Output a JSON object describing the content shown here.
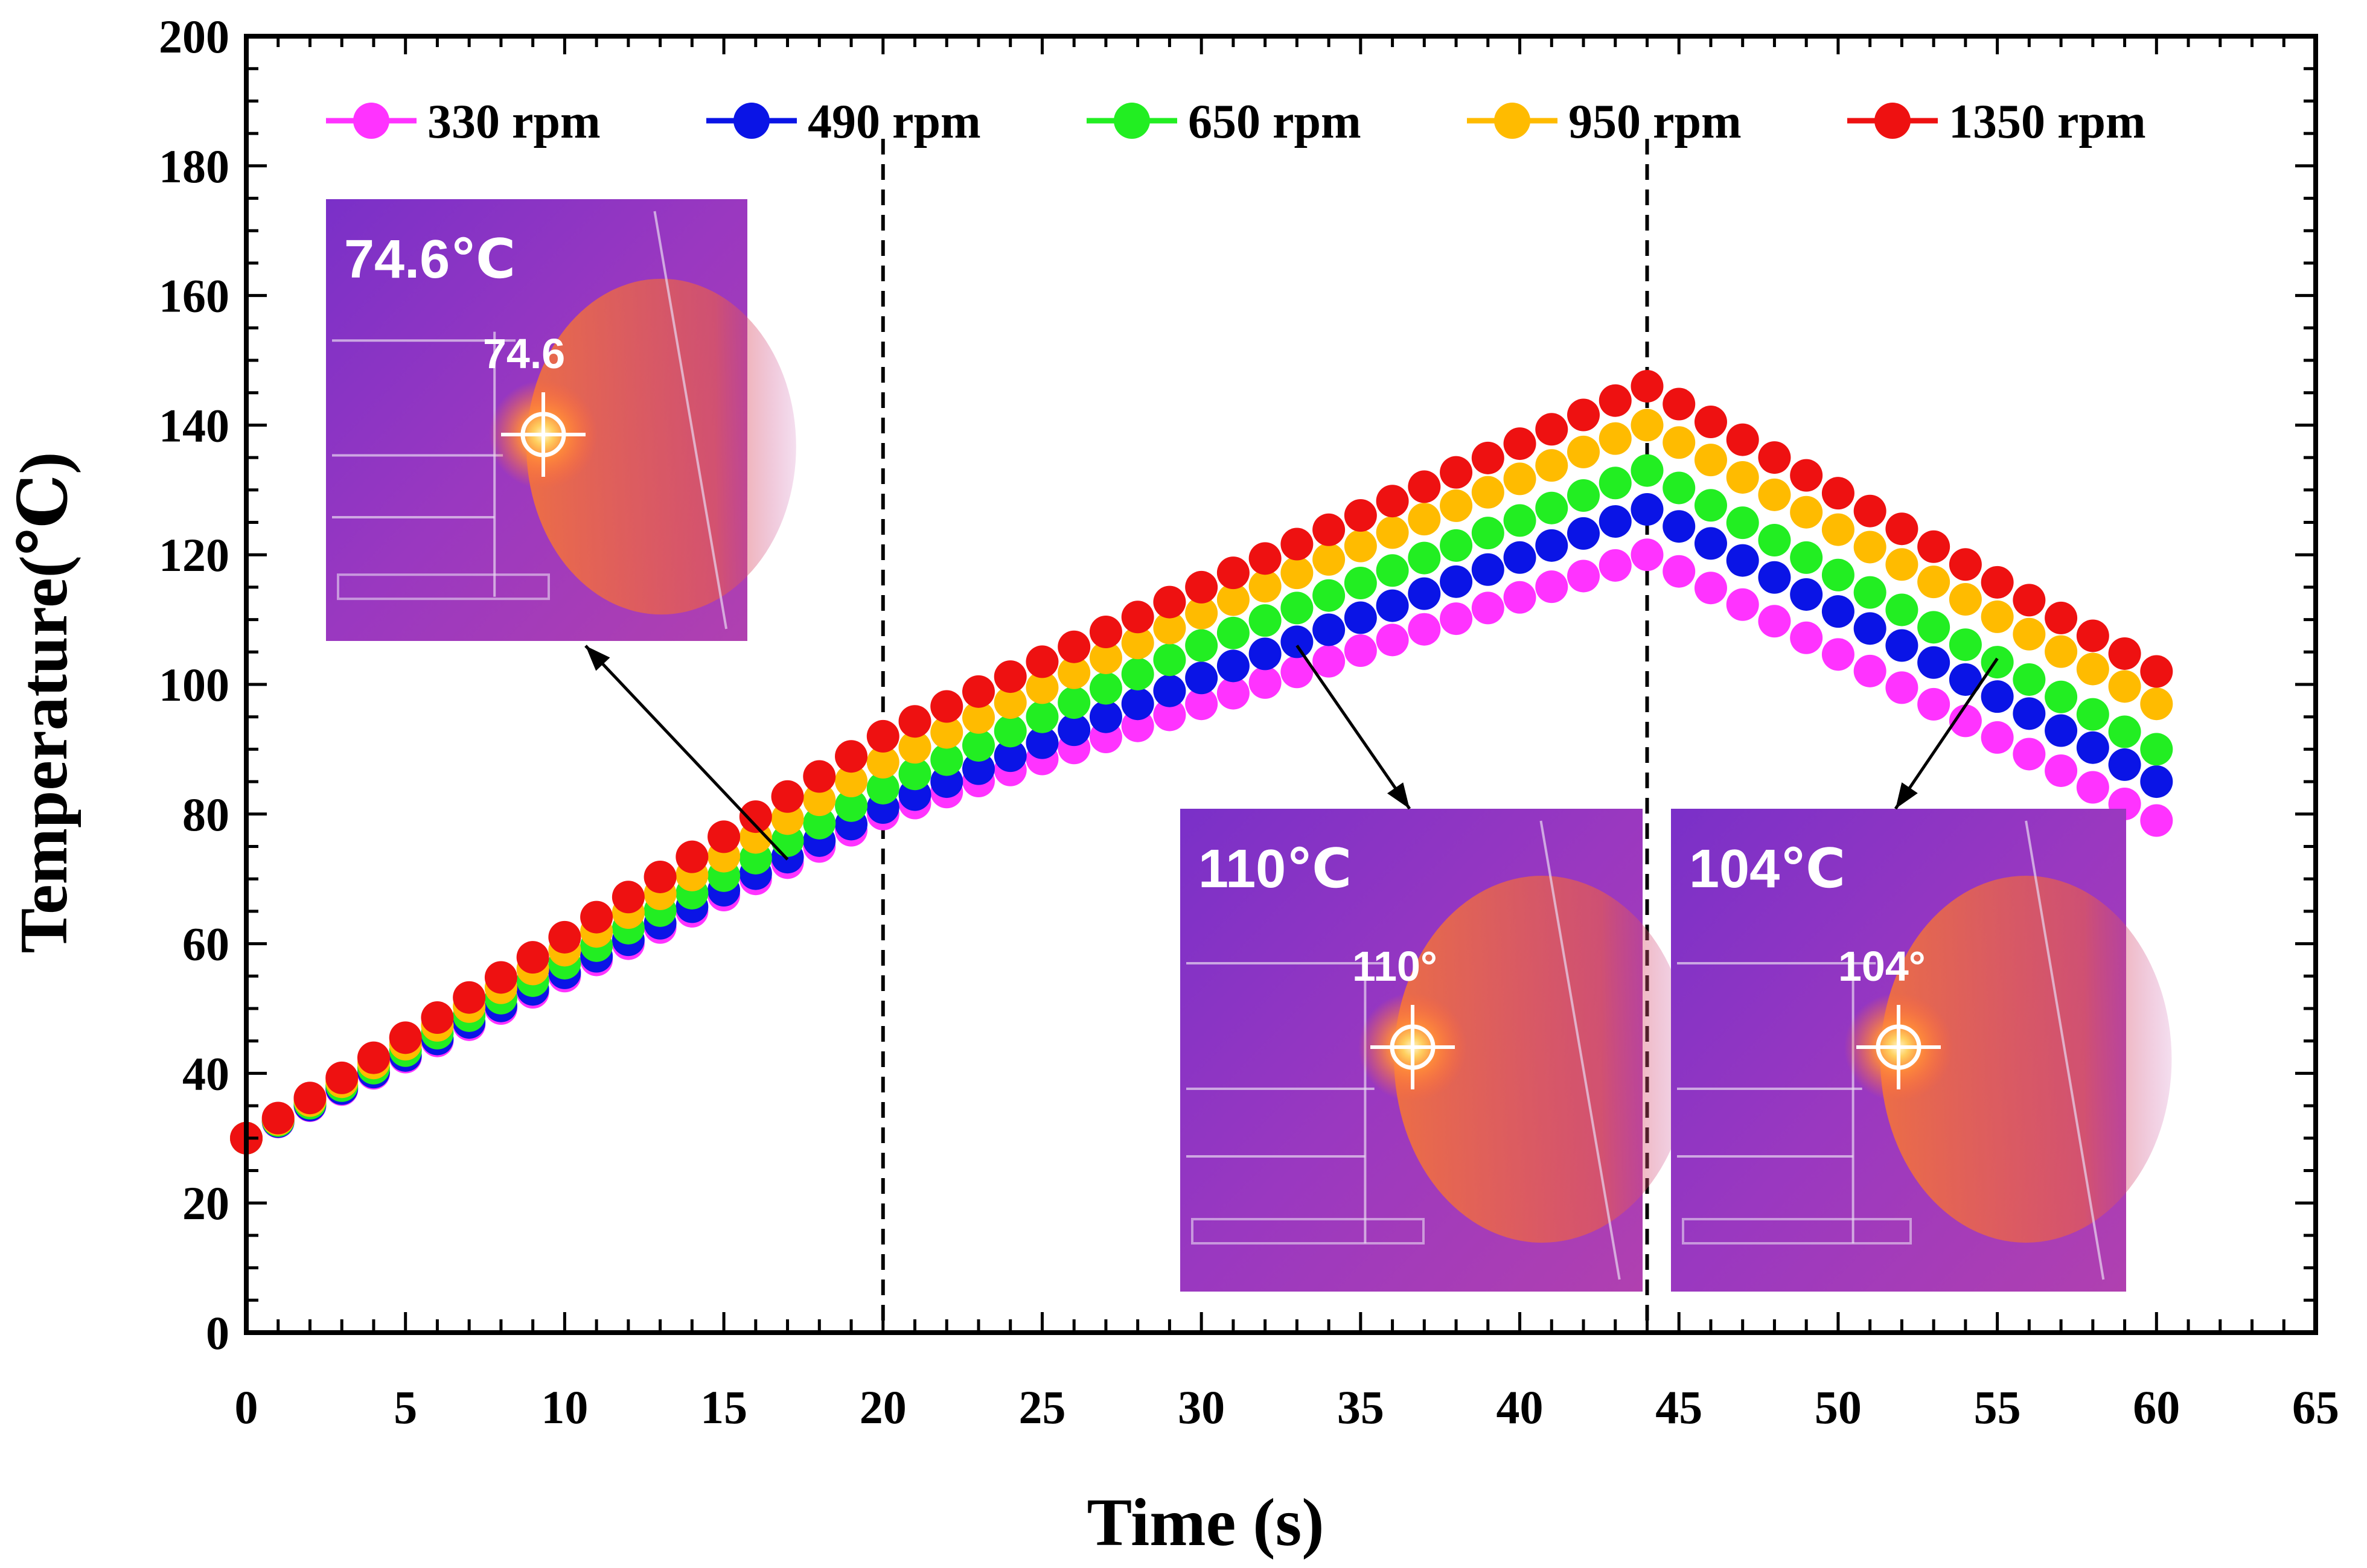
{
  "chart_data": {
    "type": "scatter",
    "title": "",
    "xlabel": "Time (s)",
    "ylabel": "Temperature(℃)",
    "xlim": [
      0,
      65
    ],
    "ylim": [
      0,
      200
    ],
    "xticks": [
      0,
      5,
      10,
      15,
      20,
      25,
      30,
      35,
      40,
      45,
      50,
      55,
      60,
      65
    ],
    "yticks": [
      0,
      20,
      40,
      60,
      80,
      100,
      120,
      140,
      160,
      180,
      200
    ],
    "xtick_labels": [
      "0",
      "5",
      "10",
      "15",
      "20",
      "25",
      "30",
      "35",
      "40",
      "45",
      "50",
      "55",
      "60",
      "65"
    ],
    "ytick_labels": [
      "0",
      "20",
      "40",
      "60",
      "80",
      "100",
      "120",
      "140",
      "160",
      "180",
      "200"
    ],
    "vlines": [
      20,
      44
    ],
    "legend_position": "top",
    "series": [
      {
        "name": "330 rpm",
        "color": "#ff33ff",
        "anchors": [
          [
            0,
            30
          ],
          [
            20,
            80
          ],
          [
            30,
            97
          ],
          [
            44,
            120
          ],
          [
            60,
            79
          ]
        ]
      },
      {
        "name": "490 rpm",
        "color": "#0a14e6",
        "anchors": [
          [
            0,
            30
          ],
          [
            20,
            81
          ],
          [
            30,
            101
          ],
          [
            44,
            127
          ],
          [
            60,
            85
          ]
        ]
      },
      {
        "name": "650 rpm",
        "color": "#22ee22",
        "anchors": [
          [
            0,
            30
          ],
          [
            20,
            84
          ],
          [
            30,
            106
          ],
          [
            44,
            133
          ],
          [
            60,
            90
          ]
        ]
      },
      {
        "name": "950 rpm",
        "color": "#ffbb00",
        "anchors": [
          [
            0,
            30
          ],
          [
            20,
            88
          ],
          [
            30,
            111
          ],
          [
            44,
            140
          ],
          [
            60,
            97
          ]
        ]
      },
      {
        "name": "1350 rpm",
        "color": "#ee1111",
        "anchors": [
          [
            0,
            30
          ],
          [
            20,
            92
          ],
          [
            30,
            115
          ],
          [
            44,
            146
          ],
          [
            60,
            102
          ]
        ]
      }
    ],
    "annotations": [
      {
        "image_label": "74.6℃",
        "spot_label": "74.6",
        "points_to": [
          17,
          73
        ]
      },
      {
        "image_label": "110℃",
        "spot_label": "110°",
        "points_to": [
          33,
          106
        ]
      },
      {
        "image_label": "104℃",
        "spot_label": "104°",
        "points_to": [
          55,
          104
        ]
      }
    ]
  }
}
